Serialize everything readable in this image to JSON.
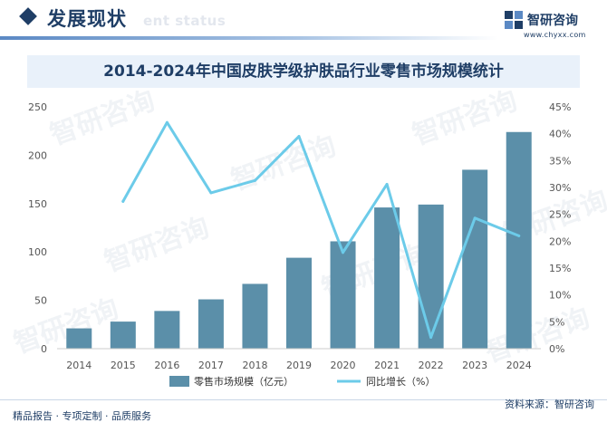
{
  "header": {
    "section_title": "发展现状",
    "section_subtitle": "ent status"
  },
  "brand": {
    "name": "智研咨询",
    "url": "www.chyxx.com"
  },
  "source": "资料来源：智研咨询",
  "footer": {
    "tagline": "精品报告 · 专项定制 · 品质服务"
  },
  "watermark": "智研咨询",
  "colors": {
    "bar": "#5b8fa9",
    "line": "#6ccbe9",
    "brand": "#1f3e66"
  },
  "chart_data": {
    "type": "bar",
    "title": "2014-2024年中国皮肤学级护肤品行业零售市场规模统计",
    "categories": [
      "2014",
      "2015",
      "2016",
      "2017",
      "2018",
      "2019",
      "2020",
      "2021",
      "2022",
      "2023",
      "2024"
    ],
    "series": [
      {
        "name": "零售市场规模（亿元）",
        "type": "bar",
        "axis": "left",
        "values": [
          21,
          28,
          39,
          51,
          67,
          94,
          111,
          146,
          149,
          185,
          224
        ]
      },
      {
        "name": "同比增长（%）",
        "type": "line",
        "axis": "right",
        "values": [
          null,
          27.4,
          42.1,
          29.0,
          31.3,
          39.5,
          17.9,
          30.6,
          2.1,
          24.3,
          21.0
        ]
      }
    ],
    "y_left": {
      "min": 0,
      "max": 250,
      "ticks": [
        "0",
        "50",
        "100",
        "150",
        "200",
        "250"
      ]
    },
    "y_right": {
      "min": 0,
      "max": 45,
      "ticks": [
        "0%",
        "5%",
        "10%",
        "15%",
        "20%",
        "25%",
        "30%",
        "35%",
        "40%",
        "45%"
      ]
    },
    "grid": false,
    "legend_position": "bottom"
  }
}
